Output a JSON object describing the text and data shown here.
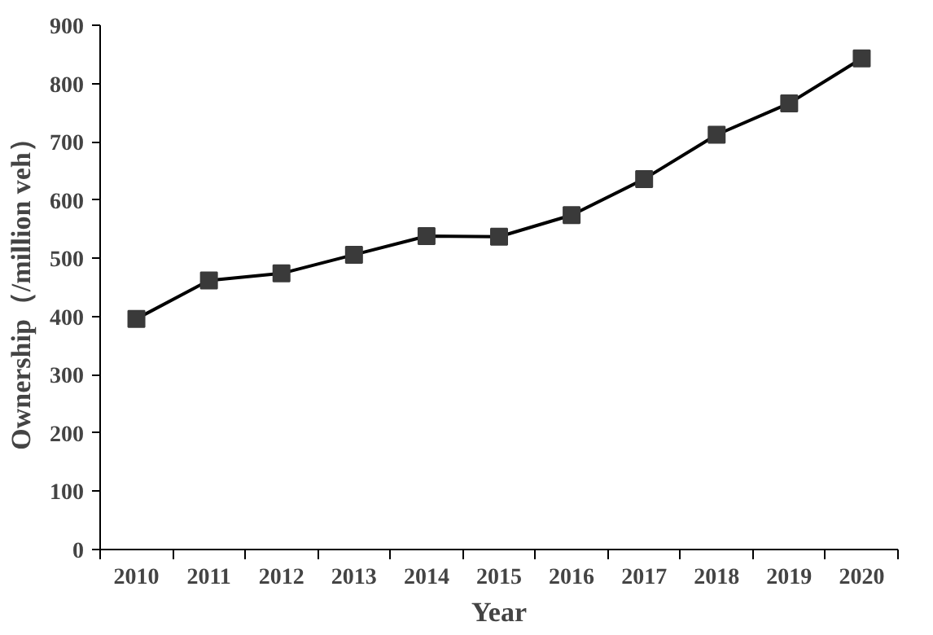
{
  "chart_data": {
    "type": "line",
    "xlabel": "Year",
    "ylabel": "Ownership（/million veh）",
    "categories": [
      "2010",
      "2011",
      "2012",
      "2013",
      "2014",
      "2015",
      "2016",
      "2017",
      "2018",
      "2019",
      "2020"
    ],
    "series": [
      {
        "color": "#000000",
        "values": [
          396,
          462,
          474,
          506,
          538,
          537,
          574,
          636,
          712,
          766,
          843
        ]
      }
    ],
    "ylim": [
      0,
      900
    ],
    "yticks": [
      0,
      100,
      200,
      300,
      400,
      500,
      600,
      700,
      800,
      900
    ],
    "grid": false,
    "marker": "square",
    "line_style": "solid"
  }
}
